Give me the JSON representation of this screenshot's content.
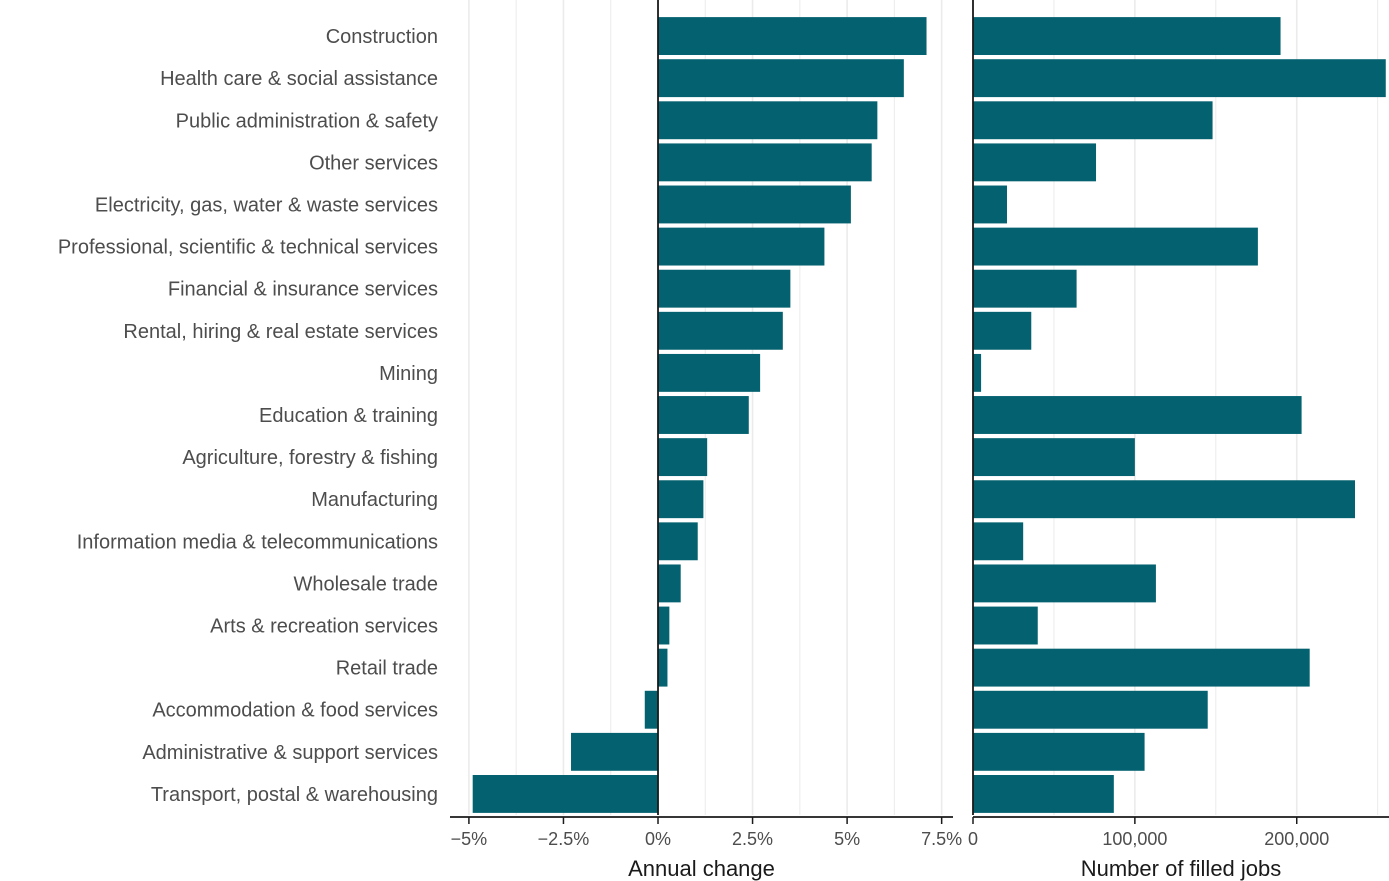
{
  "colors": {
    "bar": "#04616f",
    "grid": "#ebebeb",
    "axis": "#1a1a1a",
    "text": "#4d4d4d"
  },
  "chart_data": [
    {
      "type": "bar",
      "orientation": "horizontal",
      "categories": [
        "Construction",
        "Health care & social assistance",
        "Public administration & safety",
        "Other services",
        "Electricity, gas, water & waste services",
        "Professional, scientific & technical services",
        "Financial & insurance services",
        "Rental, hiring & real estate services",
        "Mining",
        "Education & training",
        "Agriculture, forestry & fishing",
        "Manufacturing",
        "Information media & telecommunications",
        "Wholesale trade",
        "Arts & recreation services",
        "Retail trade",
        "Accommodation & food services",
        "Administrative & support services",
        "Transport, postal & warehousing"
      ],
      "values": [
        7.1,
        6.5,
        5.8,
        5.65,
        5.1,
        4.4,
        3.5,
        3.3,
        2.7,
        2.4,
        1.3,
        1.2,
        1.05,
        0.6,
        0.3,
        0.25,
        -0.35,
        -2.3,
        -4.9
      ],
      "xlabel": "Annual change",
      "xlim": [
        -5.5,
        7.8
      ],
      "grid": true,
      "ticks": [
        {
          "value": -5,
          "label": "−5%"
        },
        {
          "value": -2.5,
          "label": "−2.5%"
        },
        {
          "value": 0,
          "label": "0%"
        },
        {
          "value": 2.5,
          "label": "2.5%"
        },
        {
          "value": 5,
          "label": "5%"
        },
        {
          "value": 7.5,
          "label": "7.5%"
        }
      ]
    },
    {
      "type": "bar",
      "orientation": "horizontal",
      "categories": [
        "Construction",
        "Health care & social assistance",
        "Public administration & safety",
        "Other services",
        "Electricity, gas, water & waste services",
        "Professional, scientific & technical services",
        "Financial & insurance services",
        "Rental, hiring & real estate services",
        "Mining",
        "Education & training",
        "Agriculture, forestry & fishing",
        "Manufacturing",
        "Information media & telecommunications",
        "Wholesale trade",
        "Arts & recreation services",
        "Retail trade",
        "Accommodation & food services",
        "Administrative & support services",
        "Transport, postal & warehousing"
      ],
      "values": [
        190000,
        255000,
        148000,
        76000,
        21000,
        176000,
        64000,
        36000,
        5000,
        203000,
        100000,
        236000,
        31000,
        113000,
        40000,
        208000,
        145000,
        106000,
        87000
      ],
      "xlabel": "Number of filled jobs",
      "xlim": [
        0,
        257000
      ],
      "grid": true,
      "ticks": [
        {
          "value": 0,
          "label": "0"
        },
        {
          "value": 100000,
          "label": "100,000"
        },
        {
          "value": 200000,
          "label": "200,000"
        }
      ]
    }
  ]
}
